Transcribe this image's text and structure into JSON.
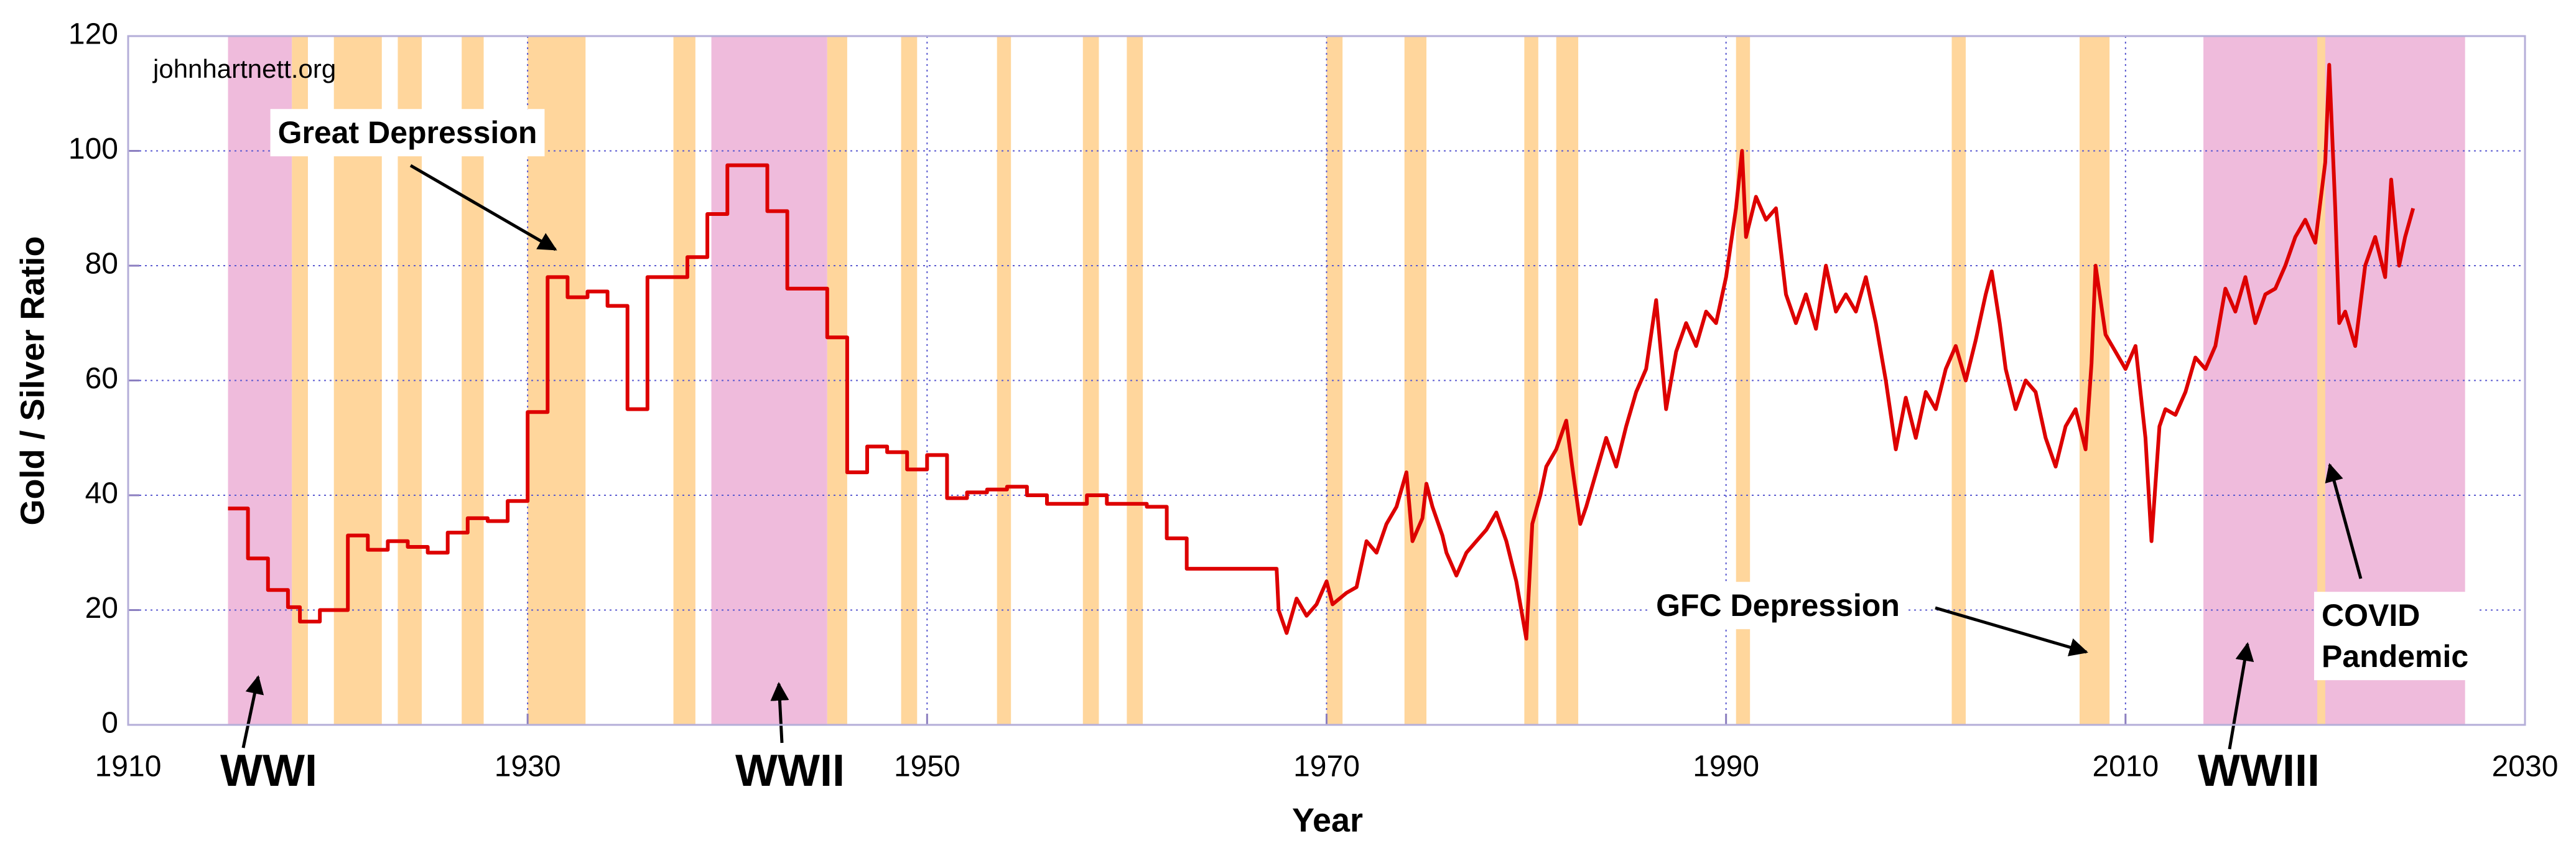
{
  "chart_data": {
    "type": "line",
    "xlabel": "Year",
    "ylabel": "Gold / Silver Ratio",
    "source": "johnhartnett.org",
    "color": "#dd0000",
    "xlim": [
      1910,
      2030
    ],
    "xticks": [
      1910,
      1930,
      1950,
      1970,
      1990,
      2010,
      2030
    ],
    "ylim": [
      0,
      120
    ],
    "yticks": [
      0,
      20,
      40,
      60,
      80,
      100,
      120
    ],
    "grid": true,
    "bands": [
      {
        "start": 1915,
        "end": 1918.2,
        "color": "#efbbdc"
      },
      {
        "start": 1939.2,
        "end": 1945,
        "color": "#efbbdc"
      },
      {
        "start": 2013.9,
        "end": 2027,
        "color": "#efbbdc"
      },
      {
        "start": 1918.2,
        "end": 1919,
        "color": "#ffd69c"
      },
      {
        "start": 1920.3,
        "end": 1922.7,
        "color": "#ffd69c"
      },
      {
        "start": 1923.5,
        "end": 1924.7,
        "color": "#ffd69c"
      },
      {
        "start": 1926.7,
        "end": 1927.8,
        "color": "#ffd69c"
      },
      {
        "start": 1930,
        "end": 1932.9,
        "color": "#ffd69c"
      },
      {
        "start": 1937.3,
        "end": 1938.4,
        "color": "#ffd69c"
      },
      {
        "start": 1945,
        "end": 1946,
        "color": "#ffd69c"
      },
      {
        "start": 1948.7,
        "end": 1949.5,
        "color": "#ffd69c"
      },
      {
        "start": 1953.5,
        "end": 1954.2,
        "color": "#ffd69c"
      },
      {
        "start": 1957.8,
        "end": 1958.6,
        "color": "#ffd69c"
      },
      {
        "start": 1960,
        "end": 1960.8,
        "color": "#ffd69c"
      },
      {
        "start": 1970,
        "end": 1970.8,
        "color": "#ffd69c"
      },
      {
        "start": 1973.9,
        "end": 1975,
        "color": "#ffd69c"
      },
      {
        "start": 1979.9,
        "end": 1980.6,
        "color": "#ffd69c"
      },
      {
        "start": 1981.5,
        "end": 1982.6,
        "color": "#ffd69c"
      },
      {
        "start": 1990.5,
        "end": 1991.2,
        "color": "#ffd69c"
      },
      {
        "start": 2001.3,
        "end": 2002,
        "color": "#ffd69c"
      },
      {
        "start": 2007.7,
        "end": 2009.2,
        "color": "#ffd69c"
      },
      {
        "start": 2019.6,
        "end": 2020,
        "color": "#ffd69c"
      }
    ],
    "x": [
      1915,
      1916,
      1916,
      1917,
      1917,
      1918,
      1918,
      1918.6,
      1918.6,
      1919.6,
      1919.6,
      1921,
      1921,
      1922,
      1922,
      1923,
      1923,
      1924,
      1924,
      1925,
      1925,
      1926,
      1926,
      1927,
      1927,
      1928,
      1928,
      1929,
      1929,
      1930,
      1930,
      1931,
      1931,
      1932,
      1932,
      1933,
      1933,
      1934,
      1934,
      1935,
      1935,
      1936,
      1936,
      1938,
      1938,
      1939,
      1939,
      1940,
      1940,
      1942,
      1942,
      1943,
      1943,
      1945,
      1945,
      1946,
      1946,
      1947,
      1947,
      1948,
      1948,
      1949,
      1949,
      1950,
      1950,
      1951,
      1951,
      1952,
      1952,
      1953,
      1953,
      1954,
      1954,
      1955,
      1955,
      1956,
      1956,
      1958,
      1958,
      1959,
      1959,
      1961,
      1961,
      1962,
      1962,
      1963,
      1963,
      1967.5,
      1967.6,
      1968,
      1968.5,
      1969,
      1969.5,
      1970,
      1970.3,
      1971,
      1971.5,
      1972,
      1972.5,
      1973,
      1973.5,
      1974,
      1974.3,
      1974.8,
      1975,
      1975.3,
      1975.8,
      1976,
      1976.5,
      1977,
      1977.5,
      1978,
      1978.5,
      1979,
      1979.5,
      1980,
      1980.3,
      1980.7,
      1981,
      1981.5,
      1982,
      1982.3,
      1982.7,
      1983,
      1983.5,
      1984,
      1984.5,
      1985,
      1985.5,
      1986,
      1986.5,
      1987,
      1987.5,
      1988,
      1988.5,
      1989,
      1989.5,
      1990,
      1990.5,
      1990.8,
      1991,
      1991.5,
      1992,
      1992.5,
      1993,
      1993.5,
      1994,
      1994.5,
      1995,
      1995.5,
      1996,
      1996.5,
      1997,
      1997.5,
      1998,
      1998.5,
      1999,
      1999.5,
      2000,
      2000.5,
      2001,
      2001.5,
      2002,
      2002.5,
      2003,
      2003.3,
      2003.7,
      2004,
      2004.5,
      2005,
      2005.5,
      2006,
      2006.5,
      2007,
      2007.5,
      2008,
      2008.3,
      2008.5,
      2009,
      2009.5,
      2010,
      2010.5,
      2011,
      2011.3,
      2011.7,
      2012,
      2012.5,
      2013,
      2013.5,
      2014,
      2014.5,
      2015,
      2015.5,
      2016,
      2016.5,
      2017,
      2017.5,
      2018,
      2018.5,
      2019,
      2019.5,
      2020,
      2020.2,
      2020.5,
      2020.7,
      2021,
      2021.5,
      2022,
      2022.5,
      2023,
      2023.3,
      2023.7,
      2024,
      2024.4
    ],
    "values": [
      37.7,
      37.7,
      29,
      29,
      23.5,
      23.5,
      20.5,
      20.5,
      18,
      18,
      20,
      20,
      33,
      33,
      30.5,
      30.5,
      32,
      32,
      31,
      31,
      30,
      30,
      33.5,
      33.5,
      36,
      36,
      35.5,
      35.5,
      39,
      39,
      54.5,
      54.5,
      78,
      78,
      74.5,
      74.5,
      75.5,
      75.5,
      73,
      73,
      55,
      55,
      78,
      78,
      81.5,
      81.5,
      89,
      89,
      97.5,
      97.5,
      89.5,
      89.5,
      76,
      76,
      67.5,
      67.5,
      44,
      44,
      48.5,
      48.5,
      47.5,
      47.5,
      44.5,
      44.5,
      47,
      47,
      39.5,
      39.5,
      40.5,
      40.5,
      41,
      41,
      41.5,
      41.5,
      40,
      40,
      38.5,
      38.5,
      40,
      40,
      38.5,
      38.5,
      38,
      38,
      32.5,
      32.5,
      27.2,
      27.2,
      20,
      16,
      22,
      19,
      21,
      25,
      21,
      23,
      24,
      32,
      30,
      35,
      38,
      44,
      32,
      36,
      42,
      38,
      33,
      30,
      26,
      30,
      32,
      34,
      37,
      32,
      25,
      15,
      35,
      40,
      45,
      48,
      53,
      45,
      35,
      38,
      44,
      50,
      45,
      52,
      58,
      62,
      74,
      55,
      65,
      70,
      66,
      72,
      70,
      78,
      90,
      100,
      85,
      92,
      88,
      90,
      75,
      70,
      75,
      69,
      80,
      72,
      75,
      72,
      78,
      70,
      60,
      48,
      57,
      50,
      58,
      55,
      62,
      66,
      60,
      67,
      75,
      79,
      70,
      62,
      55,
      60,
      58,
      50,
      45,
      52,
      55,
      48,
      63,
      80,
      68,
      65,
      62,
      66,
      50,
      32,
      52,
      55,
      54,
      58,
      64,
      62,
      66,
      76,
      72,
      78,
      70,
      75,
      76,
      80,
      85,
      88,
      84,
      98,
      115,
      90,
      70,
      72,
      66,
      80,
      85,
      78,
      95,
      80,
      85,
      90
    ],
    "annotations": [
      {
        "lines": [
          "Great Depression"
        ]
      },
      {
        "lines": [
          "GFC Depression"
        ]
      },
      {
        "lines": [
          "COVID",
          "Pandemic"
        ]
      },
      {
        "lines": [
          "WWI"
        ]
      },
      {
        "lines": [
          "WWII"
        ]
      },
      {
        "lines": [
          "WWIII"
        ]
      }
    ]
  }
}
